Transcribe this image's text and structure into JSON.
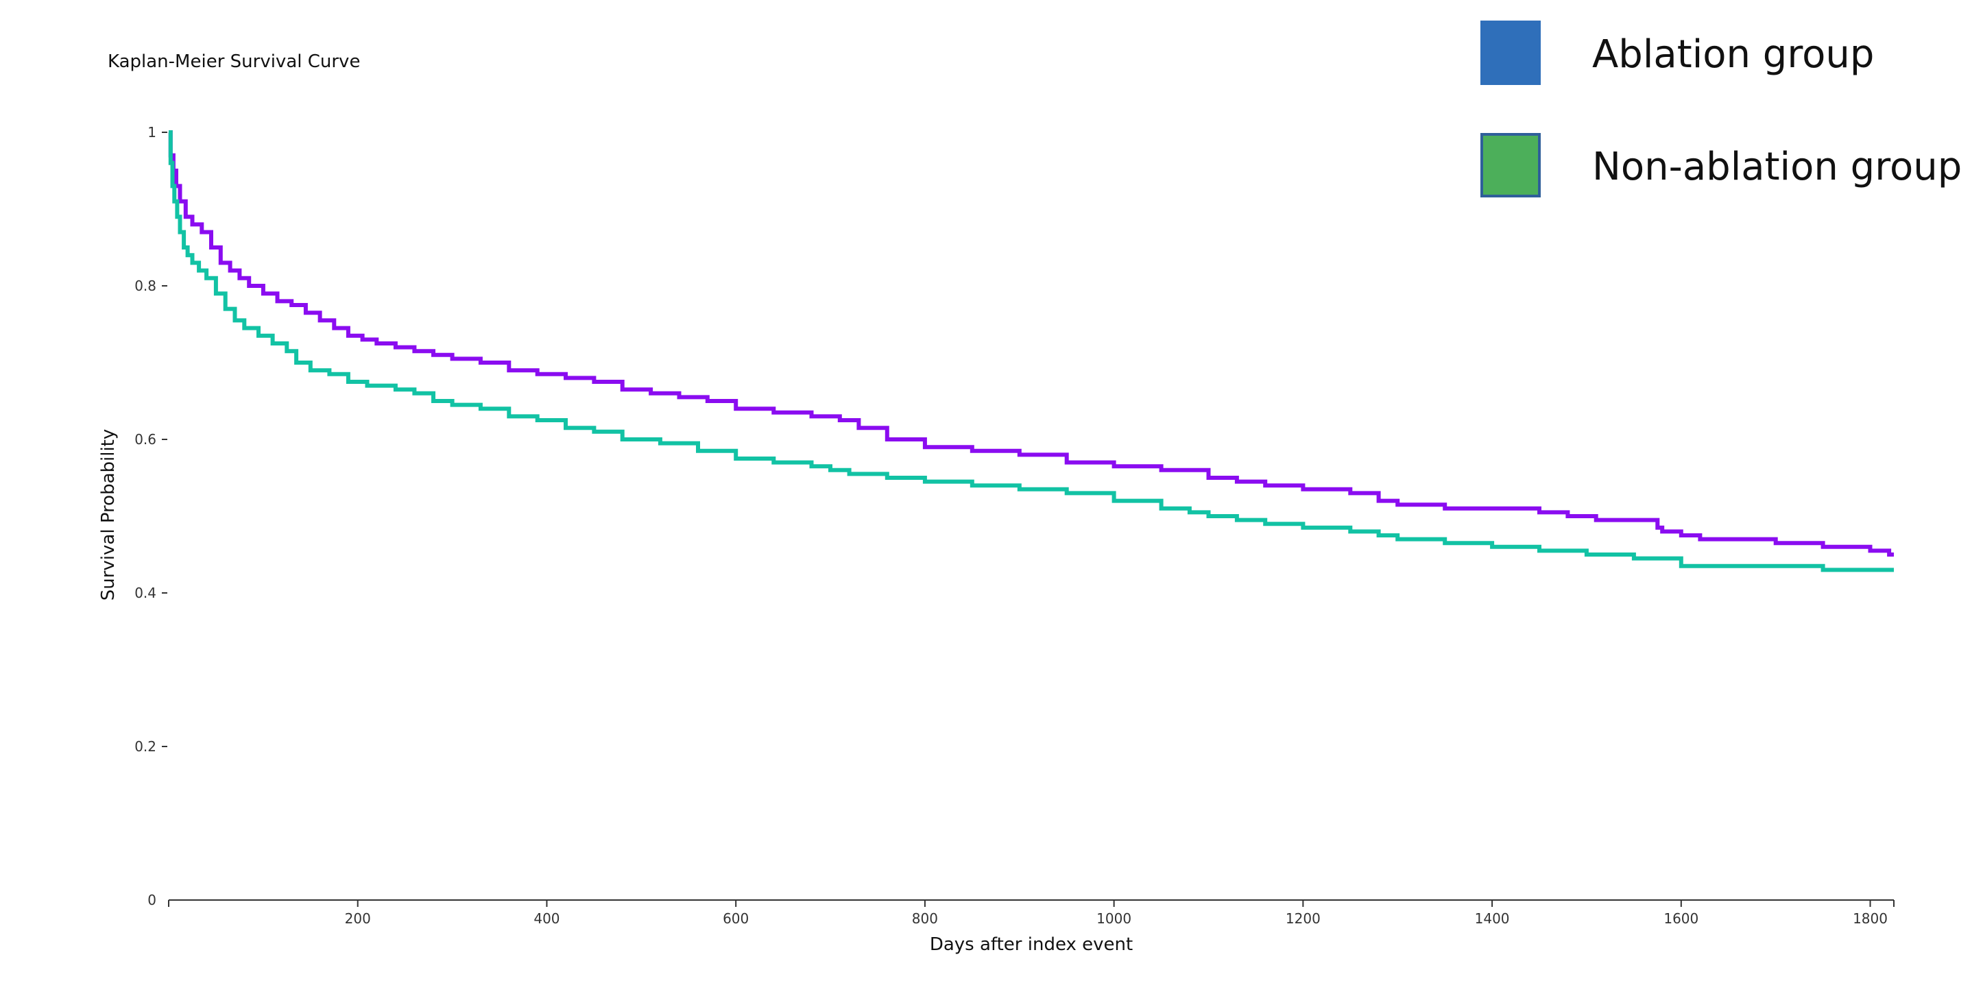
{
  "chart_data": {
    "type": "line",
    "title": "Kaplan-Meier Survival Curve",
    "xlabel": "Days after index event",
    "ylabel": "Survival Probability",
    "xlim": [
      0,
      1825
    ],
    "ylim": [
      0,
      1
    ],
    "x_ticks": [
      200,
      400,
      600,
      800,
      1000,
      1200,
      1400,
      1600,
      1800
    ],
    "y_ticks": [
      0,
      0.2,
      0.4,
      0.6,
      0.8,
      1
    ],
    "y_tick_labels": [
      "0",
      "0.2",
      "0.4",
      "0.6",
      "0.8",
      "1"
    ],
    "grid": false,
    "legend_position": "top-right",
    "legend": [
      {
        "label": "Ablation group",
        "swatch_color": "#2f6fba"
      },
      {
        "label": "Non-ablation group",
        "swatch_color": "#4caf5a",
        "swatch_border": "#2f5f9a"
      }
    ],
    "series": [
      {
        "color": "#8a0cf0",
        "step": true,
        "x": [
          0,
          2,
          5,
          8,
          12,
          18,
          25,
          35,
          45,
          55,
          65,
          75,
          85,
          100,
          115,
          130,
          145,
          160,
          175,
          190,
          205,
          220,
          240,
          260,
          280,
          300,
          330,
          360,
          390,
          420,
          450,
          480,
          510,
          540,
          570,
          600,
          640,
          680,
          710,
          730,
          760,
          800,
          850,
          900,
          950,
          1000,
          1050,
          1100,
          1130,
          1160,
          1200,
          1250,
          1280,
          1300,
          1350,
          1380,
          1450,
          1480,
          1510,
          1550,
          1575,
          1580,
          1600,
          1620,
          1700,
          1750,
          1800,
          1820,
          1825
        ],
        "y": [
          1,
          0.97,
          0.95,
          0.93,
          0.91,
          0.89,
          0.88,
          0.87,
          0.85,
          0.83,
          0.82,
          0.81,
          0.8,
          0.79,
          0.78,
          0.775,
          0.765,
          0.755,
          0.745,
          0.735,
          0.73,
          0.725,
          0.72,
          0.715,
          0.71,
          0.705,
          0.7,
          0.69,
          0.685,
          0.68,
          0.675,
          0.665,
          0.66,
          0.655,
          0.65,
          0.64,
          0.635,
          0.63,
          0.625,
          0.615,
          0.6,
          0.59,
          0.585,
          0.58,
          0.57,
          0.565,
          0.56,
          0.55,
          0.545,
          0.54,
          0.535,
          0.53,
          0.52,
          0.515,
          0.51,
          0.51,
          0.505,
          0.5,
          0.495,
          0.495,
          0.485,
          0.48,
          0.475,
          0.47,
          0.465,
          0.46,
          0.455,
          0.45,
          0.45
        ]
      },
      {
        "color": "#12c2a4",
        "step": true,
        "x": [
          0,
          2,
          4,
          6,
          9,
          12,
          16,
          20,
          25,
          32,
          40,
          50,
          60,
          70,
          80,
          95,
          110,
          125,
          135,
          150,
          170,
          190,
          210,
          240,
          260,
          280,
          300,
          330,
          360,
          390,
          420,
          450,
          480,
          520,
          560,
          600,
          640,
          680,
          700,
          720,
          760,
          800,
          850,
          900,
          950,
          1000,
          1050,
          1080,
          1100,
          1130,
          1160,
          1200,
          1250,
          1280,
          1300,
          1350,
          1400,
          1450,
          1500,
          1550,
          1600,
          1700,
          1750,
          1800,
          1825
        ],
        "y": [
          1,
          0.96,
          0.93,
          0.91,
          0.89,
          0.87,
          0.85,
          0.84,
          0.83,
          0.82,
          0.81,
          0.79,
          0.77,
          0.755,
          0.745,
          0.735,
          0.725,
          0.715,
          0.7,
          0.69,
          0.685,
          0.675,
          0.67,
          0.665,
          0.66,
          0.65,
          0.645,
          0.64,
          0.63,
          0.625,
          0.615,
          0.61,
          0.6,
          0.595,
          0.585,
          0.575,
          0.57,
          0.565,
          0.56,
          0.555,
          0.55,
          0.545,
          0.54,
          0.535,
          0.53,
          0.52,
          0.51,
          0.505,
          0.5,
          0.495,
          0.49,
          0.485,
          0.48,
          0.475,
          0.47,
          0.465,
          0.46,
          0.455,
          0.45,
          0.445,
          0.435,
          0.435,
          0.43,
          0.43,
          0.43
        ]
      }
    ]
  }
}
